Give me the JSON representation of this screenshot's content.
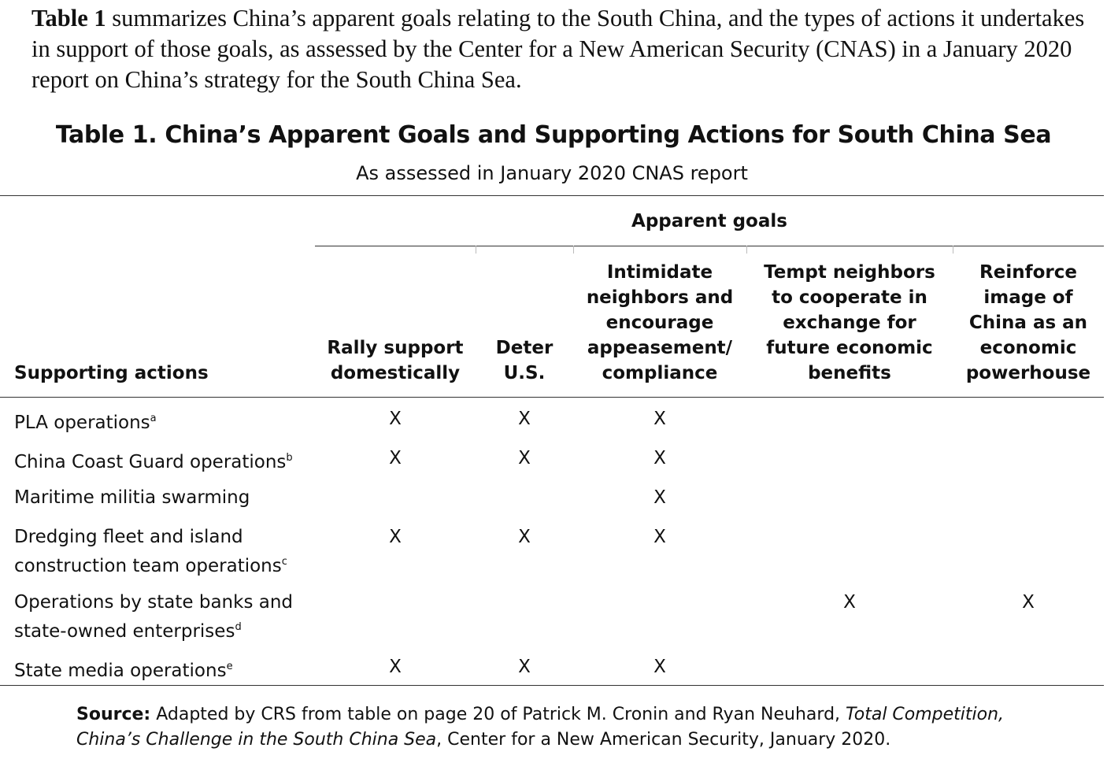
{
  "intro": {
    "lead": "Table 1",
    "text": " summarizes China’s apparent goals relating to the South China, and the types of actions it undertakes in support of those goals, as assessed by the Center for a New American Security (CNAS) in a January 2020 report on China’s strategy for the South China Sea."
  },
  "table": {
    "title": "Table 1. China’s Apparent Goals and Supporting Actions for South China Sea",
    "subtitle": "As assessed in January 2020 CNAS report",
    "goals_header": "Apparent goals",
    "columns": [
      {
        "label": "Supporting actions",
        "lines": [
          "Supporting actions"
        ]
      },
      {
        "label": "Rally support domestically",
        "lines": [
          "Rally support",
          "domestically"
        ]
      },
      {
        "label": "Deter U.S.",
        "lines": [
          "Deter",
          "U.S."
        ]
      },
      {
        "label": "Intimidate neighbors and encourage appeasement/ compliance",
        "lines": [
          "Intimidate",
          "neighbors and",
          "encourage",
          "appeasement/",
          "compliance"
        ]
      },
      {
        "label": "Tempt neighbors to cooperate in exchange for future economic benefits",
        "lines": [
          "Tempt neighbors",
          "to cooperate in",
          "exchange for",
          "future economic",
          "benefits"
        ]
      },
      {
        "label": "Reinforce image of China as an economic powerhouse",
        "lines": [
          "Reinforce",
          "image of",
          "China as an",
          "economic",
          "powerhouse"
        ]
      }
    ],
    "mark_symbol": "X",
    "rows": [
      {
        "lines": [
          "PLA operations"
        ],
        "note": "a",
        "marks": [
          true,
          true,
          true,
          false,
          false
        ]
      },
      {
        "lines": [
          "China Coast Guard operations"
        ],
        "note": "b",
        "marks": [
          true,
          true,
          true,
          false,
          false
        ]
      },
      {
        "lines": [
          "Maritime militia swarming"
        ],
        "note": "",
        "marks": [
          false,
          false,
          true,
          false,
          false
        ]
      },
      {
        "lines": [
          "Dredging fleet and island",
          "construction team operations"
        ],
        "note": "c",
        "marks": [
          true,
          true,
          true,
          false,
          false
        ]
      },
      {
        "lines": [
          "Operations by state banks and",
          "state-owned enterprises"
        ],
        "note": "d",
        "marks": [
          false,
          false,
          false,
          true,
          true
        ]
      },
      {
        "lines": [
          "State media operations"
        ],
        "note": "e",
        "marks": [
          true,
          true,
          true,
          false,
          false
        ]
      }
    ]
  },
  "source": {
    "label": "Source:",
    "text1": " Adapted by CRS from table on page 20 of Patrick M. Cronin and Ryan Neuhard, ",
    "title_italic": "Total Competition, China’s Challenge in the South China Sea",
    "text2": ", Center for a New American Security, January 2020."
  }
}
